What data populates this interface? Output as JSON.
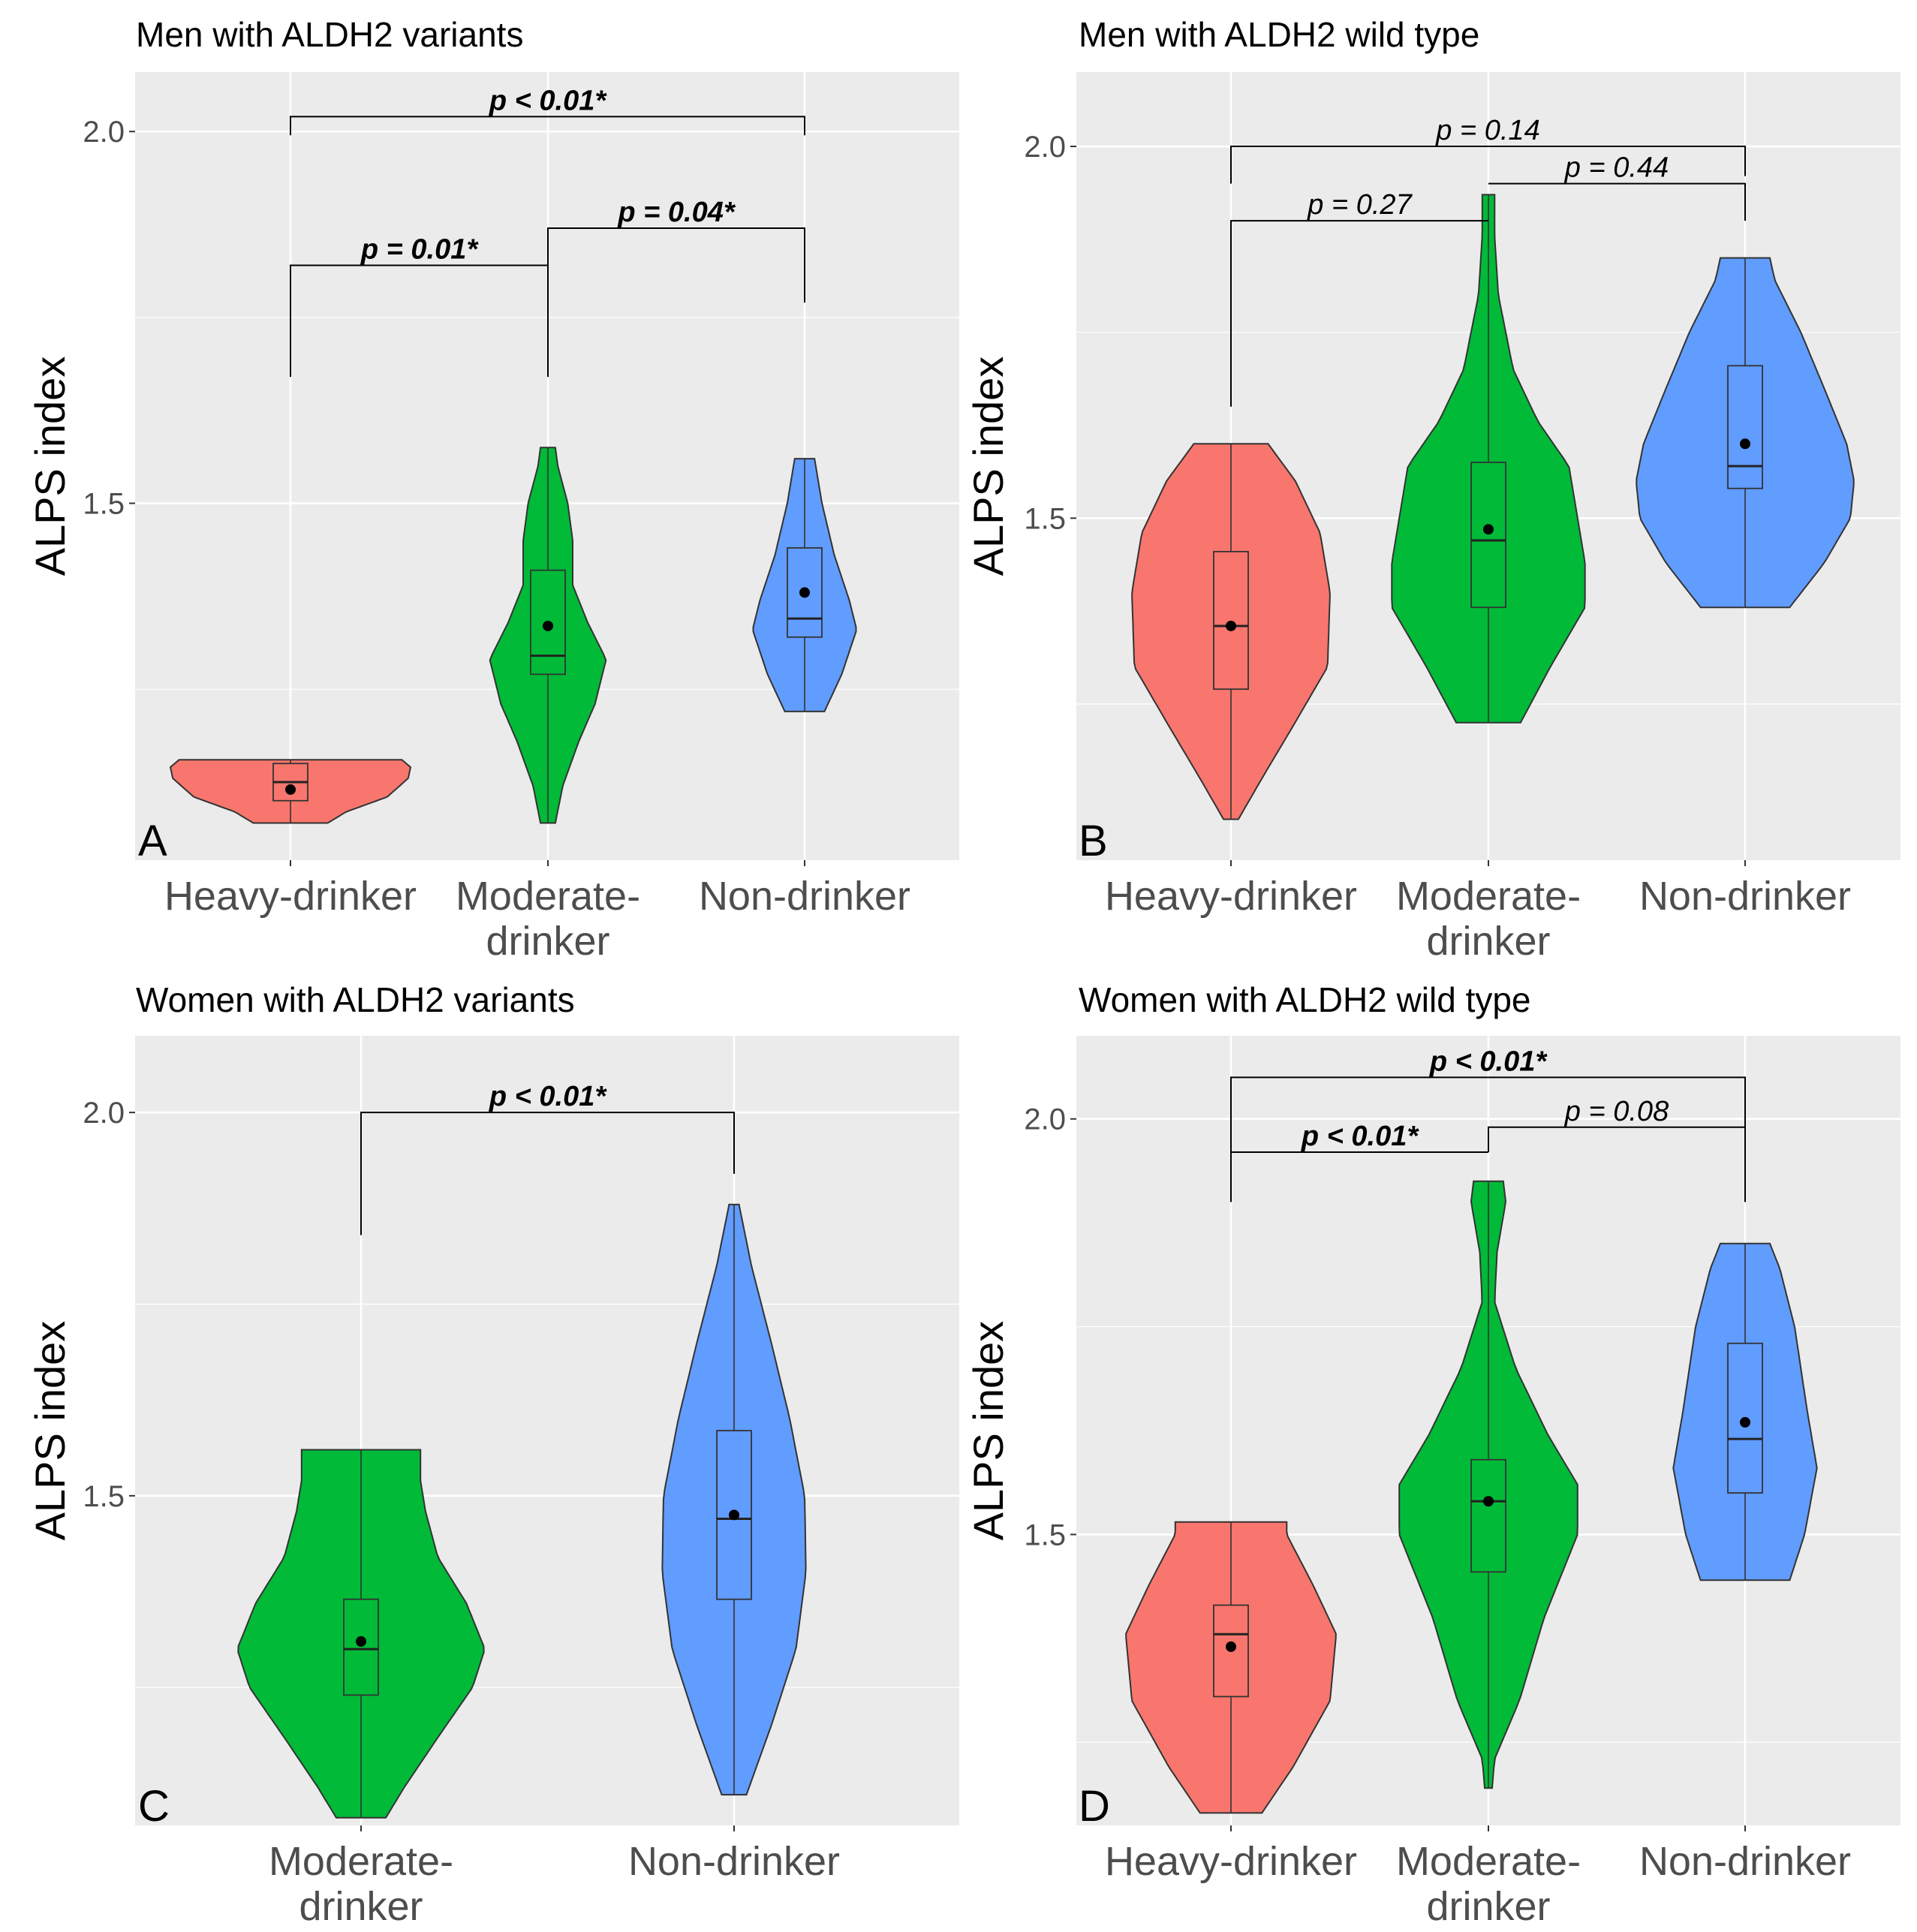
{
  "figure": {
    "ylabel": "ALPS index",
    "colors": {
      "Heavy-drinker": "#F8766D",
      "Moderate-drinker": "#00BA38",
      "Non-drinker": "#619CFF",
      "panel_bg": "#EBEBEB",
      "grid": "#FFFFFF",
      "outline": "#333333"
    }
  },
  "chart_data": [
    {
      "panel": "A",
      "type": "violin",
      "title": "Men with ALDH2 variants",
      "ylabel": "ALPS index",
      "ylim": [
        1.02,
        2.08
      ],
      "yticks": [
        "1.5",
        "2.0"
      ],
      "ytick_values": [
        1.5,
        2.0
      ],
      "categories": [
        "Heavy-drinker",
        "Moderate-drinker",
        "Non-drinker"
      ],
      "category_labels": [
        [
          "Heavy-drinker"
        ],
        [
          "Moderate-",
          "drinker"
        ],
        [
          "Non-drinker"
        ]
      ],
      "groups": [
        {
          "name": "Heavy-drinker",
          "min": 1.07,
          "max": 1.155,
          "q1": 1.1,
          "median": 1.125,
          "q3": 1.15,
          "mean": 1.115,
          "profile": [
            [
              1.07,
              0.3
            ],
            [
              1.085,
              0.45
            ],
            [
              1.105,
              0.78
            ],
            [
              1.13,
              0.95
            ],
            [
              1.145,
              0.97
            ],
            [
              1.155,
              0.9
            ]
          ]
        },
        {
          "name": "Moderate-drinker",
          "min": 1.07,
          "max": 1.575,
          "q1": 1.27,
          "median": 1.295,
          "q3": 1.41,
          "mean": 1.335,
          "profile": [
            [
              1.07,
              0.06
            ],
            [
              1.12,
              0.12
            ],
            [
              1.18,
              0.25
            ],
            [
              1.23,
              0.38
            ],
            [
              1.29,
              0.47
            ],
            [
              1.34,
              0.32
            ],
            [
              1.39,
              0.2
            ],
            [
              1.45,
              0.2
            ],
            [
              1.5,
              0.16
            ],
            [
              1.55,
              0.08
            ],
            [
              1.575,
              0.06
            ]
          ]
        },
        {
          "name": "Non-drinker",
          "min": 1.22,
          "max": 1.56,
          "q1": 1.32,
          "median": 1.345,
          "q3": 1.44,
          "mean": 1.38,
          "profile": [
            [
              1.22,
              0.16
            ],
            [
              1.27,
              0.3
            ],
            [
              1.33,
              0.42
            ],
            [
              1.37,
              0.36
            ],
            [
              1.43,
              0.24
            ],
            [
              1.5,
              0.14
            ],
            [
              1.56,
              0.08
            ]
          ]
        }
      ],
      "comparisons": [
        {
          "from": "Heavy-drinker",
          "to": "Moderate-drinker",
          "label": "p = 0.01*",
          "significant": true,
          "y": 1.82,
          "left_drop": 1.67,
          "right_drop": 1.67
        },
        {
          "from": "Moderate-drinker",
          "to": "Non-drinker",
          "label": "p = 0.04*",
          "significant": true,
          "y": 1.87,
          "left_drop": 1.67,
          "right_drop": 1.77
        },
        {
          "from": "Heavy-drinker",
          "to": "Non-drinker",
          "label": "p < 0.01*",
          "significant": true,
          "y": 2.02,
          "left_drop": 1.995,
          "right_drop": 1.995
        }
      ]
    },
    {
      "panel": "B",
      "type": "violin",
      "title": "Men with ALDH2 wild type",
      "ylabel": "ALPS index",
      "ylim": [
        1.04,
        2.1
      ],
      "yticks": [
        "1.5",
        "2.0"
      ],
      "ytick_values": [
        1.5,
        2.0
      ],
      "categories": [
        "Heavy-drinker",
        "Moderate-drinker",
        "Non-drinker"
      ],
      "category_labels": [
        [
          "Heavy-drinker"
        ],
        [
          "Moderate-",
          "drinker"
        ],
        [
          "Non-drinker"
        ]
      ],
      "groups": [
        {
          "name": "Heavy-drinker",
          "min": 1.095,
          "max": 1.6,
          "q1": 1.27,
          "median": 1.355,
          "q3": 1.455,
          "mean": 1.355,
          "profile": [
            [
              1.095,
              0.06
            ],
            [
              1.15,
              0.25
            ],
            [
              1.22,
              0.5
            ],
            [
              1.3,
              0.78
            ],
            [
              1.4,
              0.8
            ],
            [
              1.48,
              0.72
            ],
            [
              1.55,
              0.52
            ],
            [
              1.6,
              0.3
            ]
          ]
        },
        {
          "name": "Moderate-drinker",
          "min": 1.225,
          "max": 1.935,
          "q1": 1.38,
          "median": 1.47,
          "q3": 1.575,
          "mean": 1.485,
          "profile": [
            [
              1.225,
              0.26
            ],
            [
              1.3,
              0.5
            ],
            [
              1.38,
              0.78
            ],
            [
              1.44,
              0.78
            ],
            [
              1.5,
              0.72
            ],
            [
              1.57,
              0.65
            ],
            [
              1.63,
              0.4
            ],
            [
              1.7,
              0.2
            ],
            [
              1.8,
              0.08
            ],
            [
              1.88,
              0.05
            ],
            [
              1.935,
              0.05
            ]
          ]
        },
        {
          "name": "Non-drinker",
          "min": 1.38,
          "max": 1.85,
          "q1": 1.54,
          "median": 1.57,
          "q3": 1.705,
          "mean": 1.6,
          "profile": [
            [
              1.38,
              0.36
            ],
            [
              1.44,
              0.64
            ],
            [
              1.5,
              0.85
            ],
            [
              1.55,
              0.88
            ],
            [
              1.6,
              0.82
            ],
            [
              1.67,
              0.65
            ],
            [
              1.75,
              0.45
            ],
            [
              1.82,
              0.24
            ],
            [
              1.85,
              0.2
            ]
          ]
        }
      ],
      "comparisons": [
        {
          "from": "Heavy-drinker",
          "to": "Moderate-drinker",
          "label": "p = 0.27",
          "significant": false,
          "y": 1.9,
          "left_drop": 1.65,
          "right_drop": 1.9
        },
        {
          "from": "Moderate-drinker",
          "to": "Non-drinker",
          "label": "p = 0.44",
          "significant": false,
          "y": 1.95,
          "left_drop": 1.95,
          "right_drop": 1.9
        },
        {
          "from": "Heavy-drinker",
          "to": "Non-drinker",
          "label": "p = 0.14",
          "significant": false,
          "y": 2.0,
          "left_drop": 1.95,
          "right_drop": 1.96
        }
      ]
    },
    {
      "panel": "C",
      "type": "violin",
      "title": "Women with ALDH2 variants",
      "ylabel": "ALPS index",
      "ylim": [
        1.07,
        2.1
      ],
      "yticks": [
        "1.5",
        "2.0"
      ],
      "ytick_values": [
        1.5,
        2.0
      ],
      "categories": [
        "Moderate-drinker",
        "Non-drinker"
      ],
      "category_labels": [
        [
          "Moderate-",
          "drinker"
        ],
        [
          "Non-drinker"
        ]
      ],
      "groups": [
        {
          "name": "Moderate-drinker",
          "min": 1.08,
          "max": 1.56,
          "q1": 1.24,
          "median": 1.3,
          "q3": 1.365,
          "mean": 1.31,
          "profile": [
            [
              1.08,
              0.2
            ],
            [
              1.12,
              0.35
            ],
            [
              1.18,
              0.6
            ],
            [
              1.25,
              0.9
            ],
            [
              1.3,
              1.0
            ],
            [
              1.36,
              0.85
            ],
            [
              1.42,
              0.62
            ],
            [
              1.48,
              0.52
            ],
            [
              1.52,
              0.48
            ],
            [
              1.56,
              0.48
            ]
          ]
        },
        {
          "name": "Non-drinker",
          "min": 1.11,
          "max": 1.88,
          "q1": 1.365,
          "median": 1.47,
          "q3": 1.585,
          "mean": 1.475,
          "profile": [
            [
              1.11,
              0.1
            ],
            [
              1.2,
              0.3
            ],
            [
              1.3,
              0.5
            ],
            [
              1.4,
              0.58
            ],
            [
              1.5,
              0.57
            ],
            [
              1.6,
              0.45
            ],
            [
              1.7,
              0.3
            ],
            [
              1.8,
              0.14
            ],
            [
              1.88,
              0.04
            ]
          ]
        }
      ],
      "comparisons": [
        {
          "from": "Moderate-drinker",
          "to": "Non-drinker",
          "label": "p < 0.01*",
          "significant": true,
          "y": 2.0,
          "left_drop": 1.84,
          "right_drop": 1.92
        }
      ]
    },
    {
      "panel": "D",
      "type": "violin",
      "title": "Women with ALDH2 wild type",
      "ylabel": "ALPS index",
      "ylim": [
        1.15,
        2.1
      ],
      "yticks": [
        "1.5",
        "2.0"
      ],
      "ytick_values": [
        1.5,
        2.0
      ],
      "categories": [
        "Heavy-drinker",
        "Moderate-drinker",
        "Non-drinker"
      ],
      "category_labels": [
        [
          "Heavy-drinker"
        ],
        [
          "Moderate-",
          "drinker"
        ],
        [
          "Non-drinker"
        ]
      ],
      "groups": [
        {
          "name": "Heavy-drinker",
          "min": 1.165,
          "max": 1.515,
          "q1": 1.305,
          "median": 1.38,
          "q3": 1.415,
          "mean": 1.365,
          "profile": [
            [
              1.165,
              0.25
            ],
            [
              1.22,
              0.5
            ],
            [
              1.3,
              0.8
            ],
            [
              1.38,
              0.85
            ],
            [
              1.44,
              0.66
            ],
            [
              1.5,
              0.45
            ],
            [
              1.515,
              0.45
            ]
          ]
        },
        {
          "name": "Moderate-drinker",
          "min": 1.195,
          "max": 1.925,
          "q1": 1.455,
          "median": 1.54,
          "q3": 1.59,
          "mean": 1.54,
          "profile": [
            [
              1.195,
              0.03
            ],
            [
              1.23,
              0.05
            ],
            [
              1.3,
              0.25
            ],
            [
              1.4,
              0.45
            ],
            [
              1.5,
              0.72
            ],
            [
              1.56,
              0.72
            ],
            [
              1.62,
              0.48
            ],
            [
              1.7,
              0.22
            ],
            [
              1.78,
              0.05
            ],
            [
              1.84,
              0.07
            ],
            [
              1.9,
              0.14
            ],
            [
              1.925,
              0.12
            ]
          ]
        },
        {
          "name": "Non-drinker",
          "min": 1.445,
          "max": 1.85,
          "q1": 1.55,
          "median": 1.615,
          "q3": 1.73,
          "mean": 1.635,
          "profile": [
            [
              1.445,
              0.36
            ],
            [
              1.5,
              0.48
            ],
            [
              1.58,
              0.58
            ],
            [
              1.65,
              0.5
            ],
            [
              1.75,
              0.4
            ],
            [
              1.82,
              0.28
            ],
            [
              1.85,
              0.2
            ]
          ]
        }
      ],
      "comparisons": [
        {
          "from": "Heavy-drinker",
          "to": "Moderate-drinker",
          "label": "p < 0.01*",
          "significant": true,
          "y": 1.96,
          "left_drop": 1.9,
          "right_drop": 1.96
        },
        {
          "from": "Moderate-drinker",
          "to": "Non-drinker",
          "label": "p = 0.08",
          "significant": false,
          "y": 1.99,
          "left_drop": 1.96,
          "right_drop": 1.9
        },
        {
          "from": "Heavy-drinker",
          "to": "Non-drinker",
          "label": "p < 0.01*",
          "significant": true,
          "y": 2.05,
          "left_drop": 1.9,
          "right_drop": 1.9
        }
      ]
    }
  ]
}
